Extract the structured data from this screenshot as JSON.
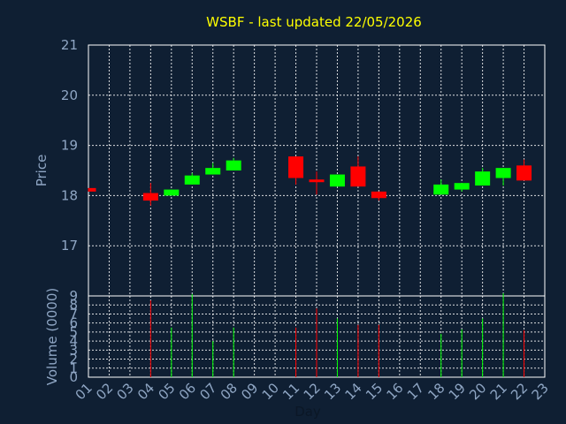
{
  "chart_data": {
    "type": "candlestick",
    "title": "WSBF - last updated 22/05/2026",
    "ylabel": "Price",
    "volume_label": "Volume (0000)",
    "xlabel": "Day",
    "price_ylim": [
      16,
      21
    ],
    "price_ticks": [
      "17",
      "18",
      "19",
      "20",
      "21"
    ],
    "volume_ylim": [
      0,
      9
    ],
    "volume_ticks": [
      "0",
      "1",
      "2",
      "3",
      "4",
      "5",
      "6",
      "7",
      "8",
      "9"
    ],
    "days": [
      "01",
      "02",
      "03",
      "04",
      "05",
      "06",
      "07",
      "08",
      "09",
      "10",
      "11",
      "12",
      "13",
      "14",
      "15",
      "16",
      "17",
      "18",
      "19",
      "20",
      "21",
      "22",
      "23"
    ],
    "colors": {
      "up": "#00ff00",
      "down": "#ff0000",
      "grid": "#ffffff",
      "axis": "#8fa6c4",
      "background": "#0f1f33",
      "title": "#ffff00"
    },
    "candles": [
      {
        "day": "01",
        "open": 18.15,
        "close": 18.08,
        "high": 18.15,
        "low": 18.08,
        "volume": 0
      },
      {
        "day": "04",
        "open": 18.05,
        "close": 17.9,
        "high": 18.25,
        "low": 17.8,
        "volume": 8.5
      },
      {
        "day": "05",
        "open": 18.0,
        "close": 18.12,
        "high": 18.12,
        "low": 18.0,
        "volume": 5.5
      },
      {
        "day": "06",
        "open": 18.22,
        "close": 18.4,
        "high": 18.45,
        "low": 18.22,
        "volume": 9.2
      },
      {
        "day": "07",
        "open": 18.42,
        "close": 18.55,
        "high": 18.65,
        "low": 18.42,
        "volume": 4.0
      },
      {
        "day": "08",
        "open": 18.5,
        "close": 18.7,
        "high": 18.75,
        "low": 18.5,
        "volume": 5.5
      },
      {
        "day": "11",
        "open": 18.78,
        "close": 18.35,
        "high": 18.78,
        "low": 18.22,
        "volume": 5.5
      },
      {
        "day": "12",
        "open": 18.32,
        "close": 18.28,
        "high": 18.48,
        "low": 18.02,
        "volume": 7.6
      },
      {
        "day": "13",
        "open": 18.18,
        "close": 18.42,
        "high": 18.42,
        "low": 18.18,
        "volume": 6.5
      },
      {
        "day": "14",
        "open": 18.58,
        "close": 18.18,
        "high": 18.78,
        "low": 18.18,
        "volume": 5.8
      },
      {
        "day": "15",
        "open": 18.08,
        "close": 17.95,
        "high": 18.08,
        "low": 17.9,
        "volume": 5.8
      },
      {
        "day": "18",
        "open": 18.02,
        "close": 18.22,
        "high": 18.32,
        "low": 18.02,
        "volume": 4.8
      },
      {
        "day": "19",
        "open": 18.12,
        "close": 18.25,
        "high": 18.25,
        "low": 18.08,
        "volume": 5.3
      },
      {
        "day": "20",
        "open": 18.2,
        "close": 18.48,
        "high": 18.55,
        "low": 18.2,
        "volume": 6.5
      },
      {
        "day": "21",
        "open": 18.35,
        "close": 18.55,
        "high": 18.55,
        "low": 18.2,
        "volume": 9.3
      },
      {
        "day": "22",
        "open": 18.6,
        "close": 18.3,
        "high": 18.72,
        "low": 18.3,
        "volume": 5.2
      }
    ]
  }
}
